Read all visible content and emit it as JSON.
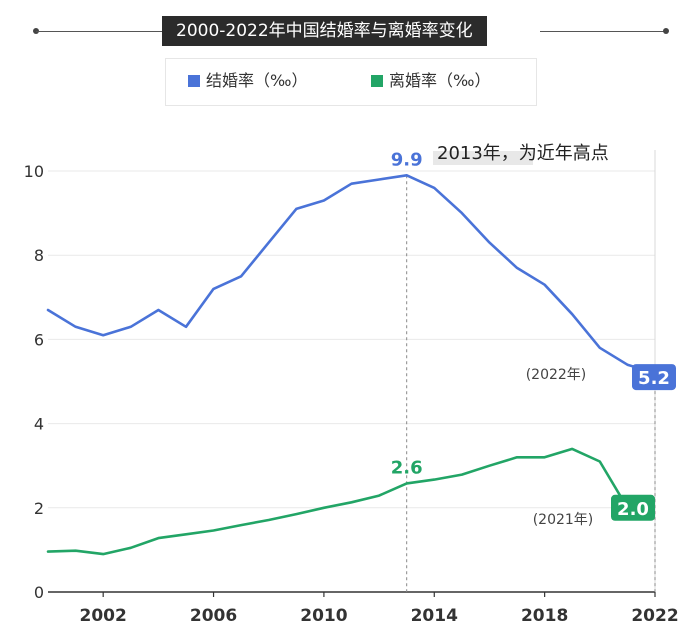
{
  "title": "2000-2022年中国结婚率与离婚率变化",
  "colors": {
    "marriage": "#4a73d8",
    "divorce": "#22a566",
    "axis": "#333333",
    "grid": "#e9e9e9"
  },
  "annotations": {
    "peak_label": "2013年，为近年高点",
    "marriage_end_year": "(2022年)",
    "divorce_end_year": "(2021年)"
  },
  "chart_data": {
    "type": "line",
    "x": [
      2000,
      2001,
      2002,
      2003,
      2004,
      2005,
      2006,
      2007,
      2008,
      2009,
      2010,
      2011,
      2012,
      2013,
      2014,
      2015,
      2016,
      2017,
      2018,
      2019,
      2020,
      2021,
      2022
    ],
    "series": [
      {
        "name": "结婚率（‰）",
        "color": "#4a73d8",
        "values": [
          6.7,
          6.3,
          6.1,
          6.3,
          6.7,
          6.3,
          7.2,
          7.5,
          8.3,
          9.1,
          9.3,
          9.7,
          9.8,
          9.9,
          9.6,
          9.0,
          8.3,
          7.7,
          7.3,
          6.6,
          5.8,
          5.4,
          5.2
        ]
      },
      {
        "name": "离婚率（‰）",
        "color": "#22a566",
        "values": [
          0.96,
          0.98,
          0.9,
          1.05,
          1.28,
          1.37,
          1.46,
          1.59,
          1.71,
          1.85,
          2.0,
          2.13,
          2.29,
          2.58,
          2.67,
          2.79,
          3.0,
          3.2,
          3.2,
          3.4,
          3.1,
          2.0,
          null
        ]
      }
    ],
    "xticks": [
      "2002",
      "2006",
      "2010",
      "2014",
      "2018",
      "2022"
    ],
    "xtick_values": [
      2002,
      2006,
      2010,
      2014,
      2018,
      2022
    ],
    "yticks": [
      "0",
      "2",
      "4",
      "6",
      "8",
      "10"
    ],
    "ytick_values": [
      0,
      2,
      4,
      6,
      8,
      10
    ],
    "xlim": [
      2000,
      2022
    ],
    "ylim": [
      0,
      10.5
    ],
    "grid": "horizontal",
    "legend_position": "top-center",
    "data_labels": [
      {
        "series": 0,
        "x": 2013,
        "text": "9.9"
      },
      {
        "series": 1,
        "x": 2013,
        "text": "2.6"
      },
      {
        "series": 0,
        "x": 2022,
        "text": "5.2"
      },
      {
        "series": 1,
        "x": 2021,
        "text": "2.0"
      }
    ]
  }
}
